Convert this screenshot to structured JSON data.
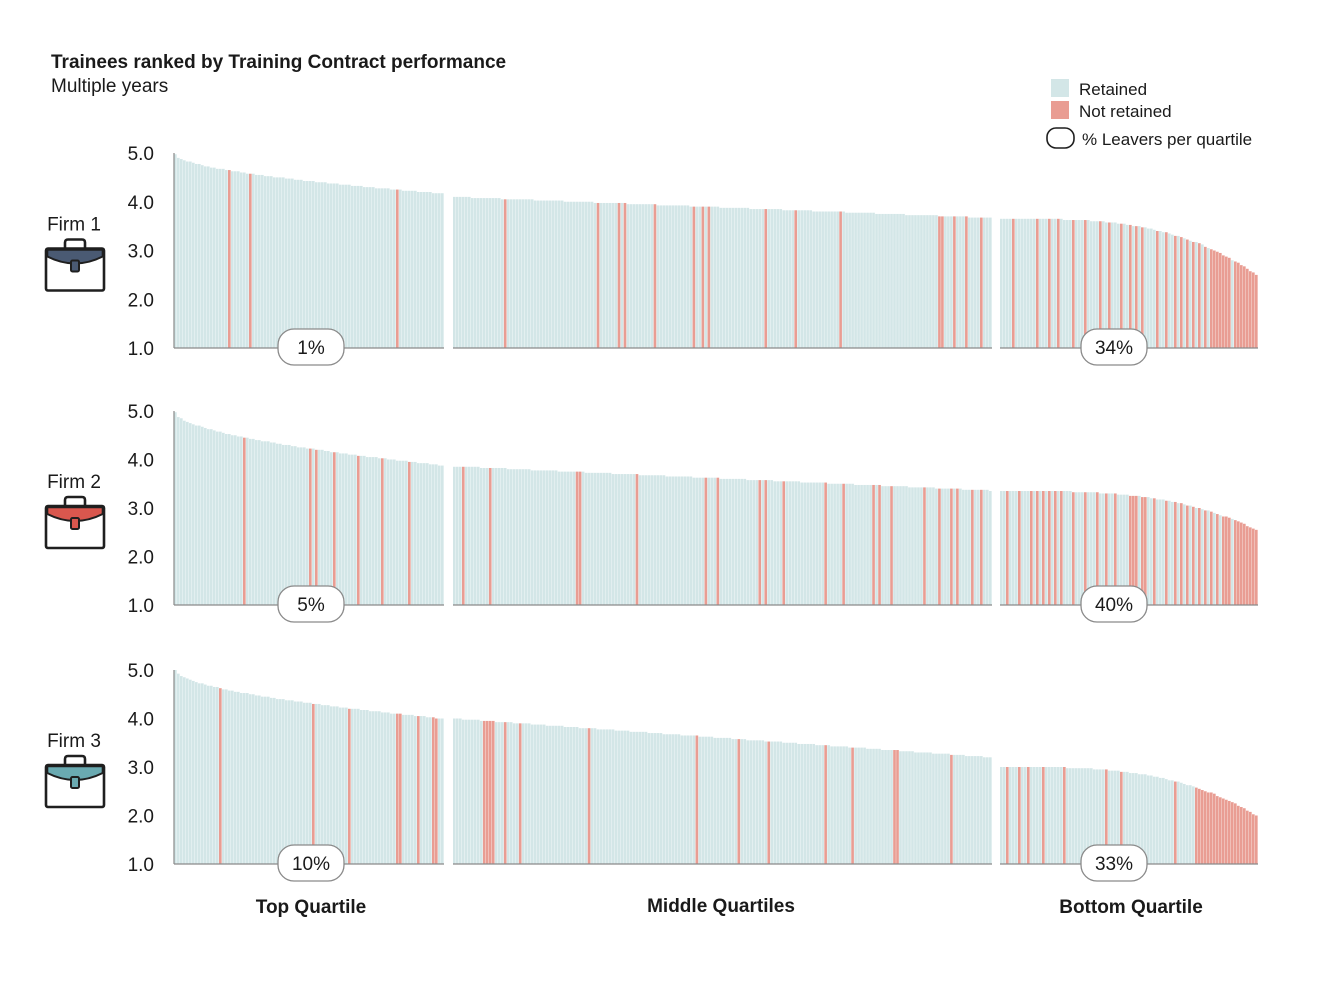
{
  "chart_data": {
    "type": "bar",
    "title": "Trainees ranked by Training Contract performance",
    "subtitle": "Multiple years",
    "ylim": [
      1.0,
      5.0
    ],
    "yticks": [
      "5.0",
      "4.0",
      "3.0",
      "2.0",
      "1.0"
    ],
    "legend": {
      "placement": "top-right",
      "retained": "Retained",
      "not_retained": "Not retained",
      "leavers": "% Leavers per quartile"
    },
    "quartile_labels": [
      "Top Quartile",
      "Middle Quartiles",
      "Bottom Quartile"
    ],
    "colors": {
      "retained": "#d3e6e7",
      "not_retained": "#e99d93",
      "axis": "#8a8a8a",
      "pill_border": "#8a8a8a",
      "outline": "#1f1f1f"
    },
    "series_note": "Each bar is one trainee; bars sorted descending within each firm and split into quartile groups.",
    "firms": [
      {
        "label": "Firm 1",
        "icon_color": "#4a5a73",
        "icon": "briefcase-icon",
        "groups": [
          {
            "count": 90,
            "start": 4.98,
            "end": 4.17,
            "leavers_pct": "1%",
            "not_retained_idx": [
              18,
              25,
              74
            ]
          },
          {
            "count": 180,
            "start": 4.1,
            "end": 3.67,
            "leavers_pct": "",
            "not_retained_idx": [
              17,
              48,
              55,
              57,
              67,
              80,
              83,
              85,
              104,
              114,
              129,
              162,
              163,
              167,
              171,
              176
            ]
          },
          {
            "count": 86,
            "start": 3.65,
            "end": 2.5,
            "leavers_pct": "34%",
            "not_retained_idx": [
              4,
              12,
              16,
              19,
              24,
              28,
              33,
              36,
              40,
              43,
              45,
              47,
              52,
              55,
              58,
              60,
              62,
              64,
              66,
              68,
              70,
              71,
              72,
              73,
              74,
              75,
              76,
              78,
              79,
              80,
              81,
              82,
              83,
              84,
              85
            ]
          }
        ]
      },
      {
        "label": "Firm 2",
        "icon_color": "#d9574e",
        "icon": "briefcase-icon",
        "groups": [
          {
            "count": 90,
            "start": 4.98,
            "end": 3.88,
            "leavers_pct": "5%",
            "not_retained_idx": [
              23,
              45,
              47,
              53,
              61,
              69,
              78
            ]
          },
          {
            "count": 180,
            "start": 3.86,
            "end": 3.36,
            "leavers_pct": "",
            "not_retained_idx": [
              3,
              12,
              41,
              42,
              61,
              84,
              88,
              102,
              104,
              110,
              124,
              130,
              140,
              142,
              146,
              157,
              162,
              166,
              168,
              173,
              176
            ]
          },
          {
            "count": 86,
            "start": 3.35,
            "end": 2.55,
            "leavers_pct": "40%",
            "not_retained_idx": [
              2,
              6,
              10,
              12,
              14,
              16,
              18,
              20,
              24,
              28,
              32,
              35,
              38,
              43,
              44,
              45,
              47,
              48,
              51,
              55,
              58,
              60,
              62,
              64,
              66,
              68,
              70,
              72,
              74,
              75,
              76,
              78,
              79,
              80,
              81,
              82,
              83,
              84,
              85
            ]
          }
        ]
      },
      {
        "label": "Firm 3",
        "icon_color": "#6aaab1",
        "icon": "briefcase-icon",
        "groups": [
          {
            "count": 90,
            "start": 5.0,
            "end": 4.0,
            "leavers_pct": "10%",
            "not_retained_idx": [
              15,
              46,
              58,
              74,
              75,
              81,
              86,
              87
            ]
          },
          {
            "count": 180,
            "start": 4.0,
            "end": 3.2,
            "leavers_pct": "",
            "not_retained_idx": [
              10,
              11,
              12,
              13,
              17,
              22,
              45,
              81,
              95,
              105,
              124,
              133,
              147,
              148,
              166
            ]
          },
          {
            "count": 86,
            "start": 3.0,
            "end": 2.0,
            "leavers_pct": "33%",
            "not_retained_idx": [
              2,
              6,
              9,
              14,
              21,
              35,
              40,
              58,
              65,
              66,
              67,
              68,
              69,
              70,
              71,
              72,
              73,
              74,
              75,
              76,
              77,
              78,
              79,
              80,
              81,
              82,
              83,
              84,
              85
            ]
          }
        ]
      }
    ]
  }
}
